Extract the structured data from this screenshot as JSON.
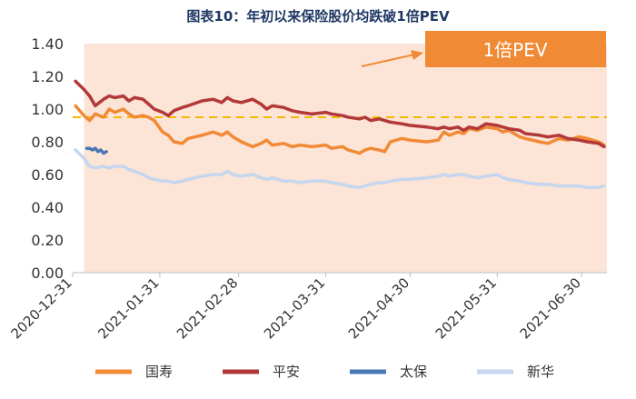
{
  "chart_data": {
    "type": "line",
    "title": "图表10：年初以来保险股价均跌破1倍PEV",
    "ylim": [
      0,
      1.4
    ],
    "y_ticks": [
      "0.00",
      "0.20",
      "0.40",
      "0.60",
      "0.80",
      "1.00",
      "1.20",
      "1.40"
    ],
    "x_ticks": [
      "2020-12-31",
      "2021-01-31",
      "2021-02-28",
      "2021-03-31",
      "2021-04-30",
      "2021-05-31",
      "2021-06-30"
    ],
    "x_range": [
      "2020-12-31",
      "2021-07-09"
    ],
    "grid": false,
    "legend_position": "bottom",
    "reference_line": {
      "value": 0.95,
      "style": "dashed",
      "color": "#f5b800"
    },
    "callout": {
      "label": "1倍PEV",
      "color": "#f08a35"
    },
    "shaded_background": {
      "from": "2021-01-04",
      "to": "2021-07-09",
      "color": "#fce4d6"
    },
    "series": [
      {
        "name": "国寿",
        "color": "#f08a35",
        "points": [
          [
            "2021-01-01",
            1.02
          ],
          [
            "2021-01-04",
            0.96
          ],
          [
            "2021-01-06",
            0.93
          ],
          [
            "2021-01-08",
            0.97
          ],
          [
            "2021-01-11",
            0.95
          ],
          [
            "2021-01-13",
            1.0
          ],
          [
            "2021-01-15",
            0.98
          ],
          [
            "2021-01-18",
            1.0
          ],
          [
            "2021-01-20",
            0.97
          ],
          [
            "2021-01-22",
            0.95
          ],
          [
            "2021-01-25",
            0.96
          ],
          [
            "2021-01-27",
            0.95
          ],
          [
            "2021-01-29",
            0.93
          ],
          [
            "2021-02-01",
            0.86
          ],
          [
            "2021-02-03",
            0.84
          ],
          [
            "2021-02-05",
            0.8
          ],
          [
            "2021-02-08",
            0.79
          ],
          [
            "2021-02-10",
            0.82
          ],
          [
            "2021-02-15",
            0.84
          ],
          [
            "2021-02-19",
            0.86
          ],
          [
            "2021-02-22",
            0.84
          ],
          [
            "2021-02-24",
            0.86
          ],
          [
            "2021-02-26",
            0.83
          ],
          [
            "2021-03-01",
            0.8
          ],
          [
            "2021-03-05",
            0.77
          ],
          [
            "2021-03-08",
            0.79
          ],
          [
            "2021-03-10",
            0.81
          ],
          [
            "2021-03-12",
            0.78
          ],
          [
            "2021-03-16",
            0.79
          ],
          [
            "2021-03-19",
            0.77
          ],
          [
            "2021-03-22",
            0.78
          ],
          [
            "2021-03-26",
            0.77
          ],
          [
            "2021-03-31",
            0.78
          ],
          [
            "2021-04-02",
            0.76
          ],
          [
            "2021-04-06",
            0.77
          ],
          [
            "2021-04-08",
            0.75
          ],
          [
            "2021-04-12",
            0.73
          ],
          [
            "2021-04-14",
            0.75
          ],
          [
            "2021-04-16",
            0.76
          ],
          [
            "2021-04-19",
            0.75
          ],
          [
            "2021-04-21",
            0.74
          ],
          [
            "2021-04-23",
            0.8
          ],
          [
            "2021-04-27",
            0.82
          ],
          [
            "2021-04-30",
            0.81
          ],
          [
            "2021-05-06",
            0.8
          ],
          [
            "2021-05-10",
            0.81
          ],
          [
            "2021-05-12",
            0.86
          ],
          [
            "2021-05-14",
            0.84
          ],
          [
            "2021-05-17",
            0.86
          ],
          [
            "2021-05-19",
            0.85
          ],
          [
            "2021-05-21",
            0.88
          ],
          [
            "2021-05-24",
            0.87
          ],
          [
            "2021-05-27",
            0.89
          ],
          [
            "2021-05-31",
            0.88
          ],
          [
            "2021-06-02",
            0.86
          ],
          [
            "2021-06-04",
            0.87
          ],
          [
            "2021-06-08",
            0.83
          ],
          [
            "2021-06-10",
            0.82
          ],
          [
            "2021-06-15",
            0.8
          ],
          [
            "2021-06-18",
            0.79
          ],
          [
            "2021-06-22",
            0.82
          ],
          [
            "2021-06-25",
            0.81
          ],
          [
            "2021-06-29",
            0.83
          ],
          [
            "2021-07-02",
            0.82
          ],
          [
            "2021-07-06",
            0.8
          ],
          [
            "2021-07-08",
            0.78
          ]
        ]
      },
      {
        "name": "平安",
        "color": "#b2383a",
        "points": [
          [
            "2021-01-01",
            1.17
          ],
          [
            "2021-01-04",
            1.12
          ],
          [
            "2021-01-06",
            1.08
          ],
          [
            "2021-01-08",
            1.02
          ],
          [
            "2021-01-11",
            1.06
          ],
          [
            "2021-01-13",
            1.08
          ],
          [
            "2021-01-15",
            1.07
          ],
          [
            "2021-01-18",
            1.08
          ],
          [
            "2021-01-20",
            1.05
          ],
          [
            "2021-01-22",
            1.07
          ],
          [
            "2021-01-25",
            1.06
          ],
          [
            "2021-01-27",
            1.03
          ],
          [
            "2021-01-29",
            1.0
          ],
          [
            "2021-02-01",
            0.98
          ],
          [
            "2021-02-03",
            0.96
          ],
          [
            "2021-02-05",
            0.99
          ],
          [
            "2021-02-08",
            1.01
          ],
          [
            "2021-02-10",
            1.02
          ],
          [
            "2021-02-15",
            1.05
          ],
          [
            "2021-02-19",
            1.06
          ],
          [
            "2021-02-22",
            1.04
          ],
          [
            "2021-02-24",
            1.07
          ],
          [
            "2021-02-26",
            1.05
          ],
          [
            "2021-03-01",
            1.04
          ],
          [
            "2021-03-05",
            1.06
          ],
          [
            "2021-03-08",
            1.03
          ],
          [
            "2021-03-10",
            1.0
          ],
          [
            "2021-03-12",
            1.02
          ],
          [
            "2021-03-16",
            1.01
          ],
          [
            "2021-03-19",
            0.99
          ],
          [
            "2021-03-22",
            0.98
          ],
          [
            "2021-03-26",
            0.97
          ],
          [
            "2021-03-31",
            0.98
          ],
          [
            "2021-04-02",
            0.97
          ],
          [
            "2021-04-06",
            0.96
          ],
          [
            "2021-04-08",
            0.95
          ],
          [
            "2021-04-12",
            0.94
          ],
          [
            "2021-04-14",
            0.95
          ],
          [
            "2021-04-16",
            0.93
          ],
          [
            "2021-04-19",
            0.94
          ],
          [
            "2021-04-21",
            0.93
          ],
          [
            "2021-04-23",
            0.92
          ],
          [
            "2021-04-27",
            0.91
          ],
          [
            "2021-04-30",
            0.9
          ],
          [
            "2021-05-06",
            0.89
          ],
          [
            "2021-05-10",
            0.88
          ],
          [
            "2021-05-12",
            0.89
          ],
          [
            "2021-05-14",
            0.88
          ],
          [
            "2021-05-17",
            0.89
          ],
          [
            "2021-05-19",
            0.87
          ],
          [
            "2021-05-21",
            0.89
          ],
          [
            "2021-05-24",
            0.88
          ],
          [
            "2021-05-27",
            0.91
          ],
          [
            "2021-05-31",
            0.9
          ],
          [
            "2021-06-02",
            0.89
          ],
          [
            "2021-06-04",
            0.88
          ],
          [
            "2021-06-08",
            0.87
          ],
          [
            "2021-06-10",
            0.85
          ],
          [
            "2021-06-15",
            0.84
          ],
          [
            "2021-06-18",
            0.83
          ],
          [
            "2021-06-22",
            0.84
          ],
          [
            "2021-06-25",
            0.82
          ],
          [
            "2021-06-29",
            0.81
          ],
          [
            "2021-07-02",
            0.8
          ],
          [
            "2021-07-06",
            0.79
          ],
          [
            "2021-07-08",
            0.77
          ]
        ]
      },
      {
        "name": "太保",
        "color": "#4a78b4",
        "points": [
          [
            "2021-01-05",
            0.76
          ],
          [
            "2021-01-06",
            0.76
          ],
          [
            "2021-01-07",
            0.75
          ],
          [
            "2021-01-08",
            0.76
          ],
          [
            "2021-01-09",
            0.74
          ],
          [
            "2021-01-10",
            0.75
          ],
          [
            "2021-01-11",
            0.73
          ],
          [
            "2021-01-12",
            0.74
          ]
        ]
      },
      {
        "name": "新华",
        "color": "#c5d6ee",
        "points": [
          [
            "2021-01-01",
            0.75
          ],
          [
            "2021-01-04",
            0.7
          ],
          [
            "2021-01-06",
            0.65
          ],
          [
            "2021-01-08",
            0.64
          ],
          [
            "2021-01-11",
            0.65
          ],
          [
            "2021-01-13",
            0.64
          ],
          [
            "2021-01-15",
            0.65
          ],
          [
            "2021-01-18",
            0.65
          ],
          [
            "2021-01-20",
            0.63
          ],
          [
            "2021-01-22",
            0.62
          ],
          [
            "2021-01-25",
            0.6
          ],
          [
            "2021-01-27",
            0.58
          ],
          [
            "2021-01-29",
            0.57
          ],
          [
            "2021-02-01",
            0.56
          ],
          [
            "2021-02-03",
            0.56
          ],
          [
            "2021-02-05",
            0.55
          ],
          [
            "2021-02-08",
            0.56
          ],
          [
            "2021-02-10",
            0.57
          ],
          [
            "2021-02-15",
            0.59
          ],
          [
            "2021-02-19",
            0.6
          ],
          [
            "2021-02-22",
            0.6
          ],
          [
            "2021-02-24",
            0.62
          ],
          [
            "2021-02-26",
            0.6
          ],
          [
            "2021-03-01",
            0.59
          ],
          [
            "2021-03-05",
            0.6
          ],
          [
            "2021-03-08",
            0.58
          ],
          [
            "2021-03-10",
            0.57
          ],
          [
            "2021-03-12",
            0.58
          ],
          [
            "2021-03-16",
            0.56
          ],
          [
            "2021-03-19",
            0.56
          ],
          [
            "2021-03-22",
            0.55
          ],
          [
            "2021-03-26",
            0.56
          ],
          [
            "2021-03-31",
            0.56
          ],
          [
            "2021-04-02",
            0.55
          ],
          [
            "2021-04-06",
            0.54
          ],
          [
            "2021-04-08",
            0.53
          ],
          [
            "2021-04-12",
            0.52
          ],
          [
            "2021-04-14",
            0.53
          ],
          [
            "2021-04-16",
            0.54
          ],
          [
            "2021-04-19",
            0.55
          ],
          [
            "2021-04-21",
            0.55
          ],
          [
            "2021-04-23",
            0.56
          ],
          [
            "2021-04-27",
            0.57
          ],
          [
            "2021-04-30",
            0.57
          ],
          [
            "2021-05-06",
            0.58
          ],
          [
            "2021-05-10",
            0.59
          ],
          [
            "2021-05-12",
            0.6
          ],
          [
            "2021-05-14",
            0.59
          ],
          [
            "2021-05-17",
            0.6
          ],
          [
            "2021-05-19",
            0.6
          ],
          [
            "2021-05-21",
            0.59
          ],
          [
            "2021-05-24",
            0.58
          ],
          [
            "2021-05-27",
            0.59
          ],
          [
            "2021-05-31",
            0.6
          ],
          [
            "2021-06-02",
            0.58
          ],
          [
            "2021-06-04",
            0.57
          ],
          [
            "2021-06-08",
            0.56
          ],
          [
            "2021-06-10",
            0.55
          ],
          [
            "2021-06-15",
            0.54
          ],
          [
            "2021-06-18",
            0.54
          ],
          [
            "2021-06-22",
            0.53
          ],
          [
            "2021-06-25",
            0.53
          ],
          [
            "2021-06-29",
            0.53
          ],
          [
            "2021-07-02",
            0.52
          ],
          [
            "2021-07-06",
            0.52
          ],
          [
            "2021-07-08",
            0.53
          ]
        ]
      }
    ]
  }
}
